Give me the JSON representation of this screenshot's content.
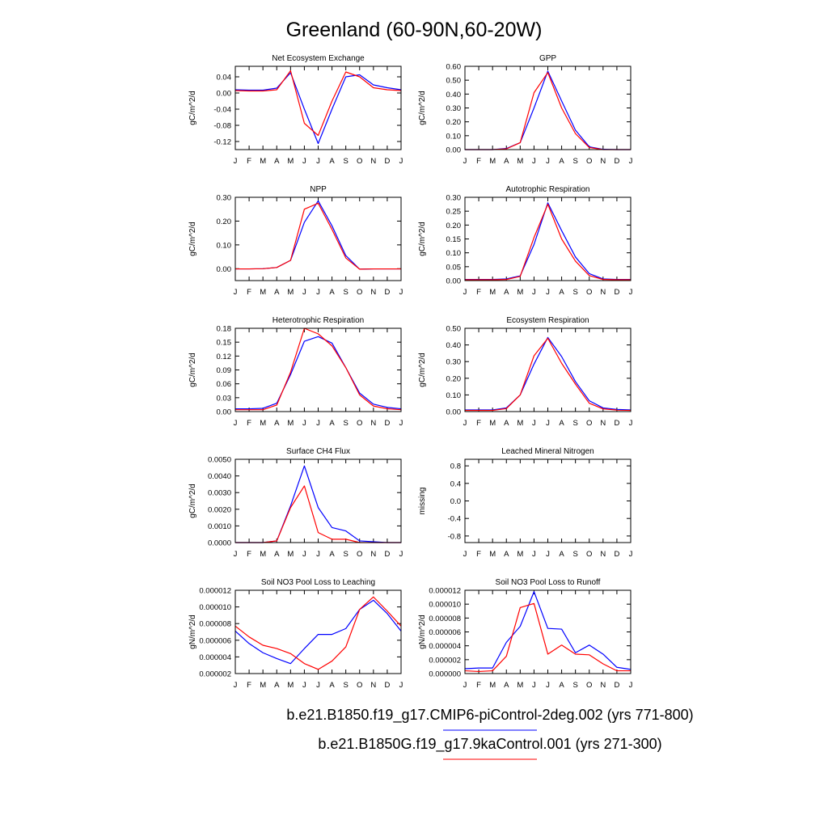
{
  "page_title": "Greenland (60-90N,60-20W)",
  "months": [
    "J",
    "F",
    "M",
    "A",
    "M",
    "J",
    "J",
    "A",
    "S",
    "O",
    "N",
    "D",
    "J"
  ],
  "legend": [
    {
      "label": "b.e21.B1850.f19_g17.CMIP6-piControl-2deg.002 (yrs 771-800)",
      "color": "#0000ff"
    },
    {
      "label": "b.e21.B1850G.f19_g17.9kaControl.001 (yrs 271-300)",
      "color": "#ff0000"
    }
  ],
  "series_colors": [
    "#0000ff",
    "#ff0000"
  ],
  "chart_data": [
    {
      "type": "line",
      "title": "Net Ecosystem Exchange",
      "ylabel": "gC/m^2/d",
      "ylim": [
        -0.14,
        0.066
      ],
      "yticks": [
        0.04,
        0.0,
        -0.04,
        -0.08,
        -0.12
      ],
      "ytick_labels": [
        "0.04",
        "0.00",
        "-0.04",
        "-0.08",
        "-0.12"
      ],
      "series": [
        {
          "values": [
            0.008,
            0.007,
            0.007,
            0.012,
            0.05,
            -0.04,
            -0.125,
            -0.04,
            0.04,
            0.045,
            0.02,
            0.013,
            0.008
          ]
        },
        {
          "values": [
            0.006,
            0.005,
            0.005,
            0.008,
            0.055,
            -0.075,
            -0.105,
            -0.02,
            0.052,
            0.04,
            0.013,
            0.008,
            0.006
          ]
        }
      ]
    },
    {
      "type": "line",
      "title": "GPP",
      "ylabel": "gC/m^2/d",
      "ylim": [
        0.0,
        0.6
      ],
      "yticks": [
        0.0,
        0.1,
        0.2,
        0.3,
        0.4,
        0.5,
        0.6
      ],
      "ytick_labels": [
        "0.00",
        "0.10",
        "0.20",
        "0.30",
        "0.40",
        "0.50",
        "0.60"
      ],
      "series": [
        {
          "values": [
            0.0,
            0.0,
            0.0,
            0.008,
            0.05,
            0.3,
            0.565,
            0.35,
            0.14,
            0.02,
            0.002,
            0.0,
            0.0
          ]
        },
        {
          "values": [
            0.0,
            0.0,
            0.0,
            0.005,
            0.05,
            0.41,
            0.555,
            0.3,
            0.115,
            0.015,
            0.0,
            0.0,
            0.0
          ]
        }
      ]
    },
    {
      "type": "line",
      "title": "NPP",
      "ylabel": "gC/m^2/d",
      "ylim": [
        -0.05,
        0.3
      ],
      "yticks": [
        0.0,
        0.1,
        0.2,
        0.3
      ],
      "ytick_labels": [
        "0.00",
        "0.10",
        "0.20",
        "0.30"
      ],
      "series": [
        {
          "values": [
            -0.001,
            -0.001,
            0.0,
            0.005,
            0.035,
            0.195,
            0.285,
            0.18,
            0.055,
            -0.002,
            -0.001,
            -0.001,
            -0.001
          ]
        },
        {
          "values": [
            -0.001,
            -0.001,
            0.0,
            0.005,
            0.035,
            0.25,
            0.275,
            0.165,
            0.045,
            -0.002,
            -0.001,
            -0.001,
            -0.001
          ]
        }
      ]
    },
    {
      "type": "line",
      "title": "Autotrophic Respiration",
      "ylabel": "gC/m^2/d",
      "ylim": [
        0.0,
        0.3
      ],
      "yticks": [
        0.0,
        0.05,
        0.1,
        0.15,
        0.2,
        0.25,
        0.3
      ],
      "ytick_labels": [
        "0.00",
        "0.05",
        "0.10",
        "0.15",
        "0.20",
        "0.25",
        "0.30"
      ],
      "series": [
        {
          "values": [
            0.004,
            0.004,
            0.004,
            0.006,
            0.017,
            0.13,
            0.28,
            0.18,
            0.085,
            0.025,
            0.006,
            0.004,
            0.004
          ]
        },
        {
          "values": [
            0.003,
            0.003,
            0.003,
            0.004,
            0.015,
            0.155,
            0.275,
            0.15,
            0.07,
            0.018,
            0.004,
            0.003,
            0.003
          ]
        }
      ]
    },
    {
      "type": "line",
      "title": "Heterotrophic Respiration",
      "ylabel": "gC/m^2/d",
      "ylim": [
        0.0,
        0.18
      ],
      "yticks": [
        0.0,
        0.03,
        0.06,
        0.09,
        0.12,
        0.15,
        0.18
      ],
      "ytick_labels": [
        "0.00",
        "0.03",
        "0.06",
        "0.09",
        "0.12",
        "0.15",
        "0.18"
      ],
      "series": [
        {
          "values": [
            0.006,
            0.006,
            0.007,
            0.018,
            0.08,
            0.152,
            0.162,
            0.148,
            0.095,
            0.04,
            0.016,
            0.009,
            0.006
          ]
        },
        {
          "values": [
            0.004,
            0.004,
            0.004,
            0.014,
            0.085,
            0.18,
            0.168,
            0.142,
            0.095,
            0.036,
            0.012,
            0.006,
            0.004
          ]
        }
      ]
    },
    {
      "type": "line",
      "title": "Ecosystem Respiration",
      "ylabel": "gC/m^2/d",
      "ylim": [
        0.0,
        0.5
      ],
      "yticks": [
        0.0,
        0.1,
        0.2,
        0.3,
        0.4,
        0.5
      ],
      "ytick_labels": [
        "0.00",
        "0.10",
        "0.20",
        "0.30",
        "0.40",
        "0.50"
      ],
      "series": [
        {
          "values": [
            0.01,
            0.01,
            0.01,
            0.022,
            0.1,
            0.285,
            0.445,
            0.33,
            0.18,
            0.065,
            0.022,
            0.013,
            0.01
          ]
        },
        {
          "values": [
            0.007,
            0.007,
            0.007,
            0.018,
            0.1,
            0.335,
            0.44,
            0.29,
            0.165,
            0.05,
            0.016,
            0.009,
            0.007
          ]
        }
      ]
    },
    {
      "type": "line",
      "title": "Surface CH4 Flux",
      "ylabel": "gC/m^2/d",
      "ylim": [
        0.0,
        0.005
      ],
      "yticks": [
        0.0,
        0.001,
        0.002,
        0.003,
        0.004,
        0.005
      ],
      "ytick_labels": [
        "0.0000",
        "0.0010",
        "0.0020",
        "0.0030",
        "0.0040",
        "0.0050"
      ],
      "series": [
        {
          "values": [
            0.0,
            0.0,
            0.0,
            0.0001,
            0.0022,
            0.0046,
            0.0021,
            0.0009,
            0.0007,
            0.0001,
            5e-05,
            0.0,
            0.0
          ]
        },
        {
          "values": [
            0.0,
            0.0,
            0.0,
            0.0001,
            0.0021,
            0.0034,
            0.0006,
            0.0002,
            0.0002,
            0.0,
            0.0,
            0.0,
            0.0
          ]
        }
      ]
    },
    {
      "type": "line",
      "title": "Leached Mineral Nitrogen",
      "ylabel": "missing",
      "ylim": [
        -0.95,
        0.95
      ],
      "yticks": [
        0.8,
        0.4,
        0.0,
        -0.4,
        -0.8
      ],
      "ytick_labels": [
        "0.8",
        "0.4",
        "0.0",
        "-0.4",
        "-0.8"
      ],
      "series": []
    },
    {
      "type": "line",
      "title": "Soil NO3 Pool Loss to Leaching",
      "ylabel": "gN/m^2/d",
      "ylim": [
        2e-06,
        1.2e-05
      ],
      "yticks": [
        2e-06,
        4e-06,
        6e-06,
        8e-06,
        1e-05,
        1.2e-05
      ],
      "ytick_labels": [
        "0.000002",
        "0.000004",
        "0.000006",
        "0.000008",
        "0.000010",
        "0.000012"
      ],
      "series": [
        {
          "values": [
            7.1e-06,
            5.6e-06,
            4.5e-06,
            3.8e-06,
            3.2e-06,
            5e-06,
            6.7e-06,
            6.7e-06,
            7.4e-06,
            9.7e-06,
            1.08e-05,
            9.2e-06,
            7.1e-06
          ]
        },
        {
          "values": [
            7.7e-06,
            6.4e-06,
            5.4e-06,
            5e-06,
            4.4e-06,
            3.2e-06,
            2.5e-06,
            3.5e-06,
            5.2e-06,
            9.7e-06,
            1.12e-05,
            9.5e-06,
            7.7e-06
          ]
        }
      ]
    },
    {
      "type": "line",
      "title": "Soil NO3 Pool Loss to Runoff",
      "ylabel": "gN/m^2/d",
      "ylim": [
        0.0,
        1.2e-05
      ],
      "yticks": [
        0.0,
        2e-06,
        4e-06,
        6e-06,
        8e-06,
        1e-05,
        1.2e-05
      ],
      "ytick_labels": [
        "0.000000",
        "0.000002",
        "0.000004",
        "0.000006",
        "0.000008",
        "0.000010",
        "0.000012"
      ],
      "series": [
        {
          "values": [
            7e-07,
            8e-07,
            8e-07,
            4.5e-06,
            6.8e-06,
            1.18e-05,
            6.5e-06,
            6.4e-06,
            3e-06,
            4.1e-06,
            2.8e-06,
            9e-07,
            6e-07
          ]
        },
        {
          "values": [
            4e-07,
            3e-07,
            4e-07,
            2.5e-06,
            9.5e-06,
            1.01e-05,
            2.8e-06,
            4.1e-06,
            2.8e-06,
            2.7e-06,
            1.4e-06,
            4e-07,
            4e-07
          ]
        }
      ]
    }
  ]
}
